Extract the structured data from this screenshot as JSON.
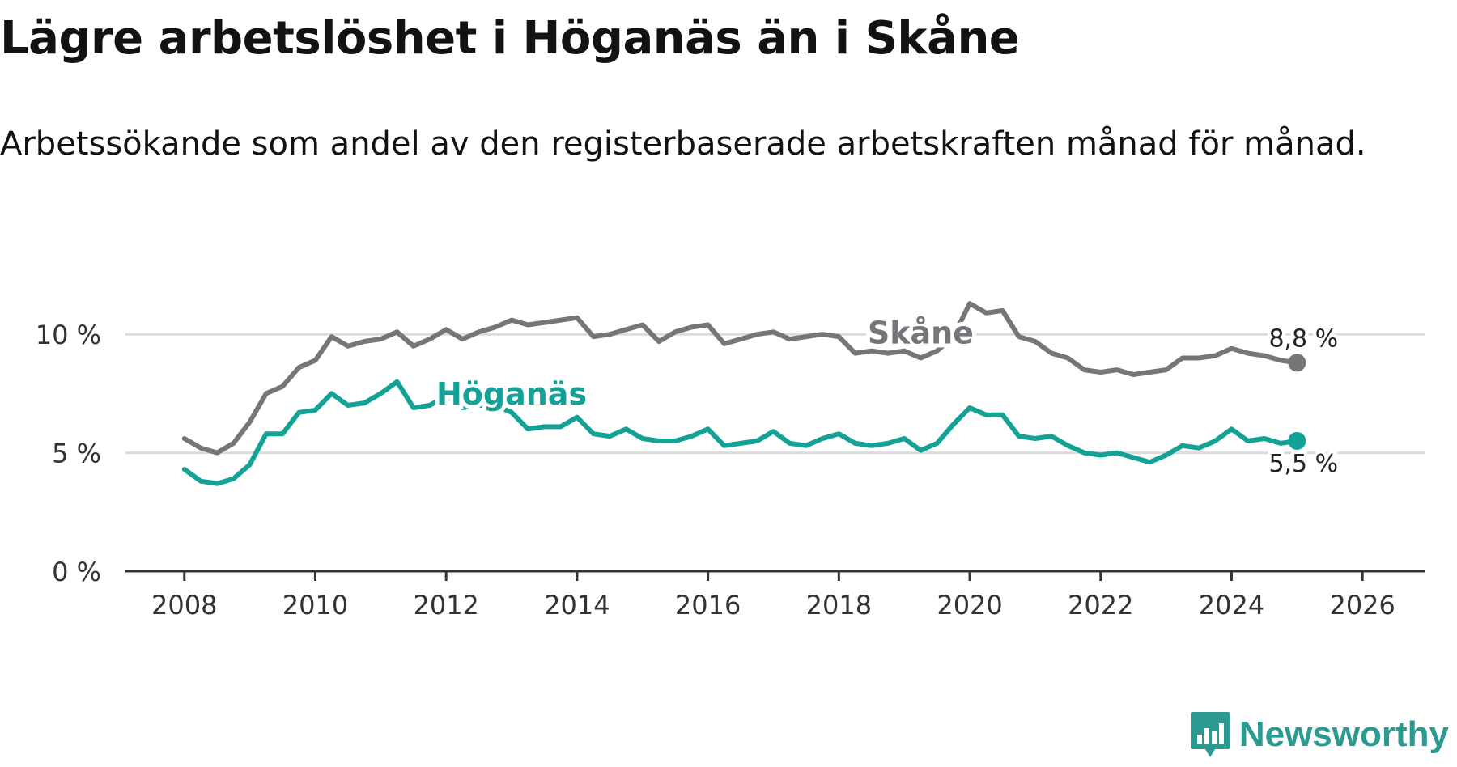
{
  "title": "Lägre arbetslöshet i Höganäs än i Skåne",
  "subtitle": "Arbetssökande som andel av den registerbaserade arbetskraften månad för månad.",
  "brand": {
    "name": "Newsworthy",
    "color": "#2b9a91",
    "icon": "newsworthy-logo-icon"
  },
  "chart_data": {
    "type": "line",
    "x_start": 2008.0,
    "x_step": 0.25,
    "xlim": [
      2007.1,
      2026.95
    ],
    "ylim": [
      0,
      12.5
    ],
    "x_ticks": [
      2008,
      2010,
      2012,
      2014,
      2016,
      2018,
      2020,
      2022,
      2024,
      2026
    ],
    "x_tick_labels": [
      "2008",
      "2010",
      "2012",
      "2014",
      "2016",
      "2018",
      "2020",
      "2022",
      "2024",
      "2026"
    ],
    "y_ticks": [
      0,
      5,
      10
    ],
    "y_tick_labels": [
      "0 %",
      "5 %",
      "10 %"
    ],
    "grid": true,
    "series": [
      {
        "name": "Skåne",
        "color": "#76757a",
        "label": "Skåne",
        "end_label": "8,8 %",
        "values": [
          5.6,
          5.2,
          5.0,
          5.4,
          6.3,
          7.5,
          7.8,
          8.6,
          8.9,
          9.9,
          9.5,
          9.7,
          9.8,
          10.1,
          9.5,
          9.8,
          10.2,
          9.8,
          10.1,
          10.3,
          10.6,
          10.4,
          10.5,
          10.6,
          10.7,
          9.9,
          10.0,
          10.2,
          10.4,
          9.7,
          10.1,
          10.3,
          10.4,
          9.6,
          9.8,
          10.0,
          10.1,
          9.8,
          9.9,
          10.0,
          9.9,
          9.2,
          9.3,
          9.2,
          9.3,
          9.0,
          9.3,
          9.9,
          11.3,
          10.9,
          11.0,
          9.9,
          9.7,
          9.2,
          9.0,
          8.5,
          8.4,
          8.5,
          8.3,
          8.4,
          8.5,
          9.0,
          9.0,
          9.1,
          9.4,
          9.2,
          9.1,
          8.9,
          8.8
        ]
      },
      {
        "name": "Höganäs",
        "color": "#15a296",
        "label": "Höganäs",
        "end_label": "5,5 %",
        "values": [
          4.3,
          3.8,
          3.7,
          3.9,
          4.5,
          5.8,
          5.8,
          6.7,
          6.8,
          7.5,
          7.0,
          7.1,
          7.5,
          8.0,
          6.9,
          7.0,
          7.4,
          6.9,
          7.0,
          7.0,
          6.7,
          6.0,
          6.1,
          6.1,
          6.5,
          5.8,
          5.7,
          6.0,
          5.6,
          5.5,
          5.5,
          5.7,
          6.0,
          5.3,
          5.4,
          5.5,
          5.9,
          5.4,
          5.3,
          5.6,
          5.8,
          5.4,
          5.3,
          5.4,
          5.6,
          5.1,
          5.4,
          6.2,
          6.9,
          6.6,
          6.6,
          5.7,
          5.6,
          5.7,
          5.3,
          5.0,
          4.9,
          5.0,
          4.8,
          4.6,
          4.9,
          5.3,
          5.2,
          5.5,
          6.0,
          5.5,
          5.6,
          5.4,
          5.5
        ]
      }
    ]
  }
}
